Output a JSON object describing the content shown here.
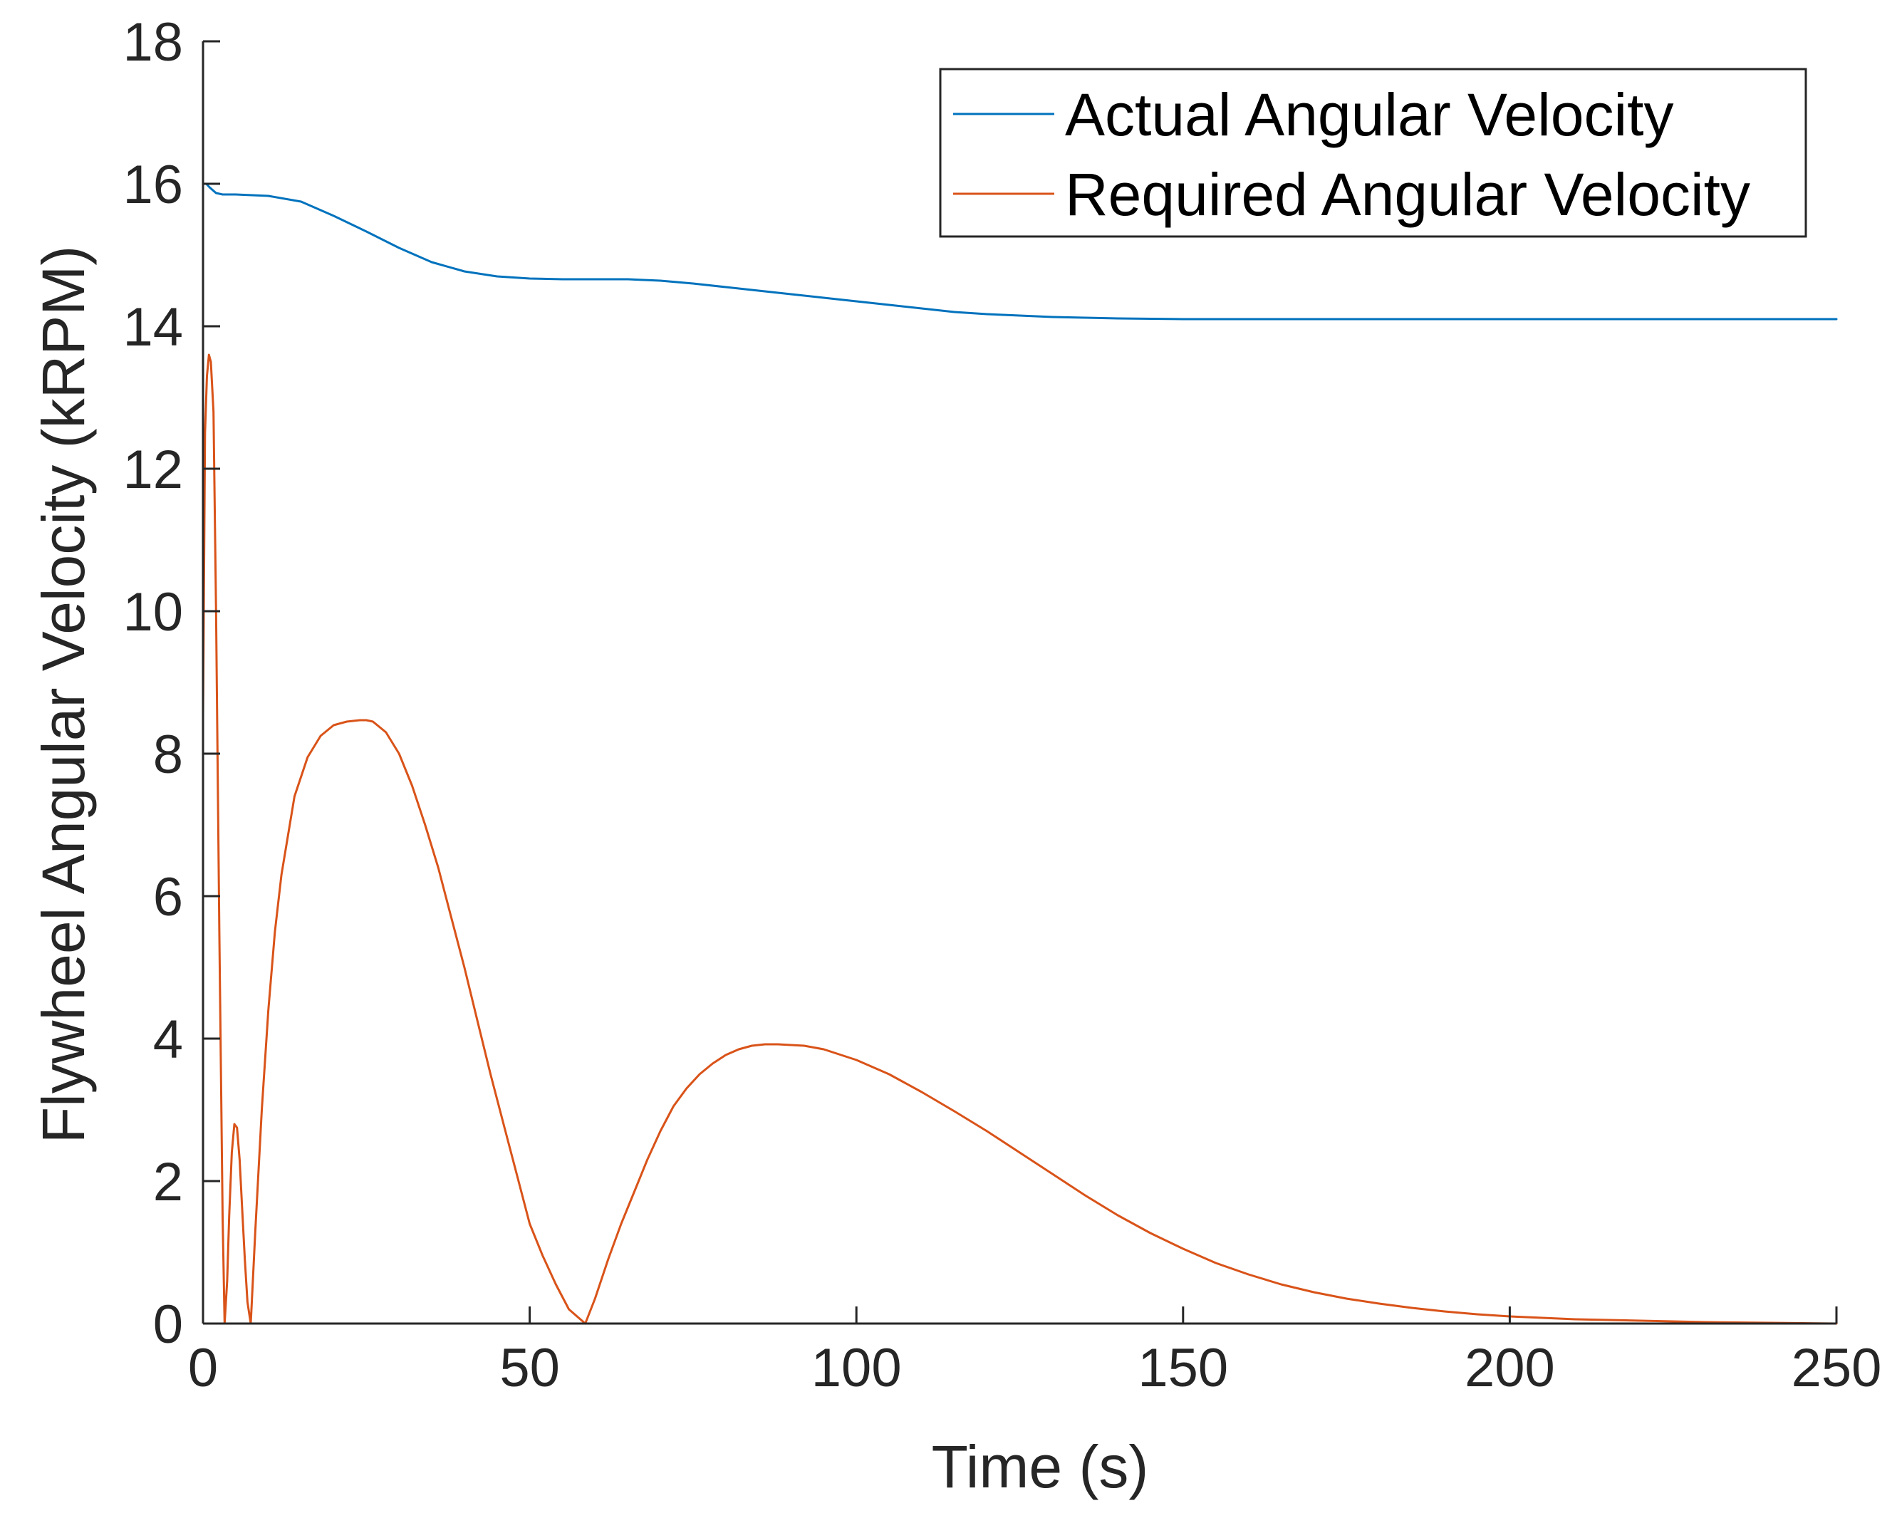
{
  "chart_data": {
    "type": "line",
    "title": "",
    "xlabel": "Time (s)",
    "ylabel": "Flywheel Angular Velocity (kRPM)",
    "xlim": [
      0,
      250
    ],
    "ylim": [
      0,
      18
    ],
    "xticks": [
      0,
      50,
      100,
      150,
      200,
      250
    ],
    "yticks": [
      0,
      2,
      4,
      6,
      8,
      10,
      12,
      14,
      16,
      18
    ],
    "grid": false,
    "legend_position": "top-right",
    "colors": {
      "actual": "#0072BD",
      "required": "#D95319",
      "axis": "#262626"
    },
    "series": [
      {
        "name": "Actual Angular Velocity",
        "color": "#0072BD",
        "x": [
          0,
          0.5,
          1,
          2,
          3,
          5,
          10,
          15,
          20,
          25,
          30,
          35,
          40,
          45,
          50,
          55,
          60,
          65,
          70,
          75,
          80,
          85,
          90,
          95,
          100,
          105,
          110,
          115,
          120,
          125,
          130,
          135,
          140,
          150,
          160,
          170,
          180,
          190,
          200,
          210,
          220,
          230,
          240,
          250
        ],
        "y": [
          16.0,
          16.0,
          15.95,
          15.87,
          15.85,
          15.85,
          15.83,
          15.75,
          15.55,
          15.33,
          15.1,
          14.9,
          14.77,
          14.7,
          14.67,
          14.66,
          14.66,
          14.66,
          14.64,
          14.6,
          14.55,
          14.5,
          14.45,
          14.4,
          14.35,
          14.3,
          14.25,
          14.2,
          14.17,
          14.15,
          14.13,
          14.12,
          14.11,
          14.1,
          14.1,
          14.1,
          14.1,
          14.1,
          14.1,
          14.1,
          14.1,
          14.1,
          14.1,
          14.1
        ]
      },
      {
        "name": "Required Angular Velocity",
        "color": "#D95319",
        "x": [
          0,
          0.3,
          0.6,
          0.9,
          1.2,
          1.6,
          2.0,
          2.5,
          3.0,
          3.3,
          3.7,
          4.0,
          4.4,
          4.8,
          5.2,
          5.6,
          6.0,
          6.4,
          6.8,
          7.3,
          8,
          9,
          10,
          11,
          12,
          14,
          16,
          18,
          20,
          22,
          24,
          25,
          26,
          28,
          30,
          32,
          34,
          36,
          38,
          40,
          42,
          44,
          46,
          48,
          50,
          52,
          54,
          56,
          58.5,
          60,
          62,
          64,
          66,
          68,
          70,
          72,
          74,
          76,
          78,
          80,
          82,
          84,
          86,
          88,
          90,
          92,
          95,
          100,
          105,
          110,
          115,
          120,
          125,
          130,
          135,
          140,
          145,
          150,
          155,
          160,
          165,
          170,
          175,
          180,
          185,
          190,
          195,
          200,
          205,
          210,
          220,
          230,
          240,
          250
        ],
        "y": [
          8.5,
          12.5,
          13.3,
          13.6,
          13.5,
          12.8,
          10.0,
          5.5,
          1.5,
          0.0,
          0.6,
          1.5,
          2.4,
          2.8,
          2.75,
          2.3,
          1.6,
          0.9,
          0.3,
          0.0,
          1.3,
          3.0,
          4.4,
          5.5,
          6.3,
          7.4,
          7.95,
          8.25,
          8.4,
          8.45,
          8.47,
          8.47,
          8.45,
          8.3,
          8.0,
          7.55,
          7.0,
          6.4,
          5.7,
          5.0,
          4.25,
          3.5,
          2.8,
          2.1,
          1.4,
          0.95,
          0.55,
          0.2,
          0.0,
          0.35,
          0.9,
          1.4,
          1.85,
          2.3,
          2.7,
          3.05,
          3.3,
          3.5,
          3.65,
          3.77,
          3.85,
          3.9,
          3.92,
          3.92,
          3.91,
          3.9,
          3.85,
          3.7,
          3.5,
          3.25,
          2.98,
          2.7,
          2.4,
          2.1,
          1.8,
          1.52,
          1.27,
          1.05,
          0.85,
          0.69,
          0.55,
          0.44,
          0.35,
          0.28,
          0.22,
          0.17,
          0.13,
          0.1,
          0.08,
          0.06,
          0.04,
          0.02,
          0.01,
          0.0
        ]
      }
    ]
  }
}
